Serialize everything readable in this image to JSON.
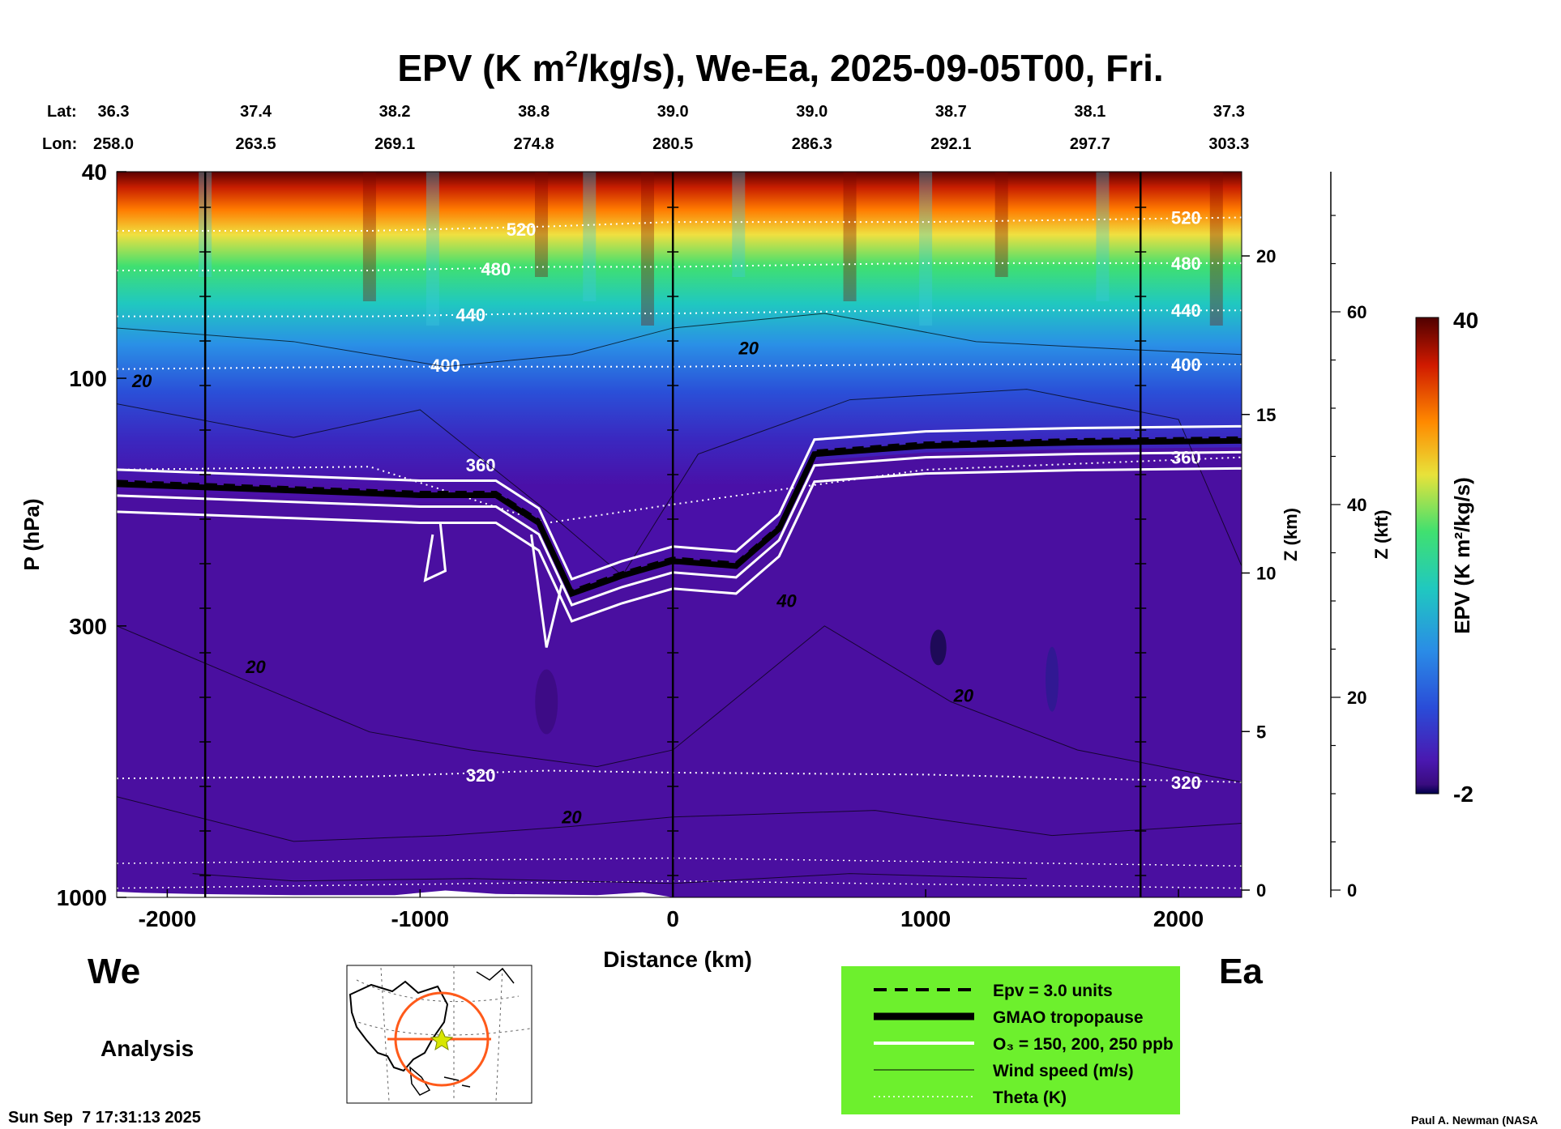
{
  "chart_data": {
    "type": "heatmap",
    "title": "EPV (K m²/kg/s), We-Ea, 2025-09-05T00, Fri.",
    "title_parts": {
      "a": "EPV (K m",
      "sup": "2",
      "b": "/kg/s), We-Ea, 2025-09-05T00, Fri."
    },
    "xlabel": "Distance (km)",
    "ylabel": "P (hPa)",
    "ylabel_right_km": "Z (km)",
    "ylabel_right_kft": "Z (kft)",
    "xlim": [
      -2200,
      2250
    ],
    "ylim": [
      1000,
      40
    ],
    "x_ticks": [
      -2000,
      -1000,
      0,
      1000,
      2000
    ],
    "y_ticks": [
      40,
      100,
      300,
      1000
    ],
    "z_km_ticks": [
      0,
      5,
      10,
      15,
      20
    ],
    "z_kft_ticks": [
      0,
      20,
      40,
      60
    ],
    "section_points": {
      "lat_label": "Lat:",
      "lon_label": "Lon:",
      "distance": [
        -2200,
        -1650,
        -1100,
        -550,
        0,
        550,
        1100,
        1650,
        2200
      ],
      "lat": [
        "36.3",
        "37.4",
        "38.2",
        "38.8",
        "39.0",
        "39.0",
        "38.7",
        "38.1",
        "37.3"
      ],
      "lon": [
        "258.0",
        "263.5",
        "269.1",
        "274.8",
        "280.5",
        "286.3",
        "292.1",
        "297.7",
        "303.3"
      ]
    },
    "verticals_km": [
      -1850,
      0,
      1850
    ],
    "side_labels": {
      "west": "We",
      "east": "Ea"
    },
    "run_type": "Analysis",
    "colorbar": {
      "label": "EPV (K m²/kg/s)",
      "min": -2,
      "max": 40,
      "min_label": "-2",
      "max_label": "40"
    },
    "theta_contours": [
      {
        "label": "520",
        "level": 520,
        "p": [
          52,
          52,
          51,
          50,
          50,
          49
        ]
      },
      {
        "label": "480",
        "level": 480,
        "p": [
          62,
          62,
          61,
          61,
          60,
          60
        ]
      },
      {
        "label": "440",
        "level": 440,
        "p": [
          76,
          76,
          75,
          75,
          74,
          74
        ]
      },
      {
        "label": "400",
        "level": 400,
        "p": [
          96,
          95,
          95,
          95,
          94,
          94
        ]
      },
      {
        "label": "360",
        "level": 360,
        "p": [
          150,
          148,
          190,
          175,
          150,
          142
        ]
      },
      {
        "label": "320",
        "level": 320,
        "p": [
          590,
          585,
          570,
          575,
          580,
          600
        ]
      }
    ],
    "theta_x": [
      -2200,
      -1200,
      -500,
      0,
      1000,
      2250
    ],
    "tropopause": {
      "x": [
        -2200,
        -1000,
        -700,
        -530,
        -400,
        -200,
        0,
        250,
        420,
        560,
        1000,
        1600,
        2250
      ],
      "p": [
        160,
        168,
        168,
        190,
        260,
        240,
        225,
        230,
        195,
        140,
        135,
        133,
        132
      ]
    },
    "wind_speed_labels": [
      {
        "text": "20",
        "x": -2100,
        "p": 104
      },
      {
        "text": "20",
        "x": 300,
        "p": 90
      },
      {
        "text": "20",
        "x": -1650,
        "p": 370
      },
      {
        "text": "40",
        "x": 450,
        "p": 276
      },
      {
        "text": "20",
        "x": 1150,
        "p": 420
      },
      {
        "text": "20",
        "x": -400,
        "p": 720
      }
    ],
    "legend": [
      {
        "label": "Epv = 3.0 units",
        "style": "dashed"
      },
      {
        "label": "GMAO tropopause",
        "style": "thick"
      },
      {
        "label": "O₃ = 150, 200, 250 ppb",
        "style": "white"
      },
      {
        "label": "Wind speed (m/s)",
        "style": "thin"
      },
      {
        "label": "Theta (K)",
        "style": "dotted"
      }
    ]
  },
  "footer": {
    "timestamp": "Sun Sep  7 17:31:13 2025",
    "credit": "Paul A. Newman (NASA"
  },
  "colors": {
    "legend_bg": "#6df02d",
    "theta": "#ffffff",
    "background_epv": "#4a0fa0",
    "map_ring": "#ff5a1a"
  }
}
